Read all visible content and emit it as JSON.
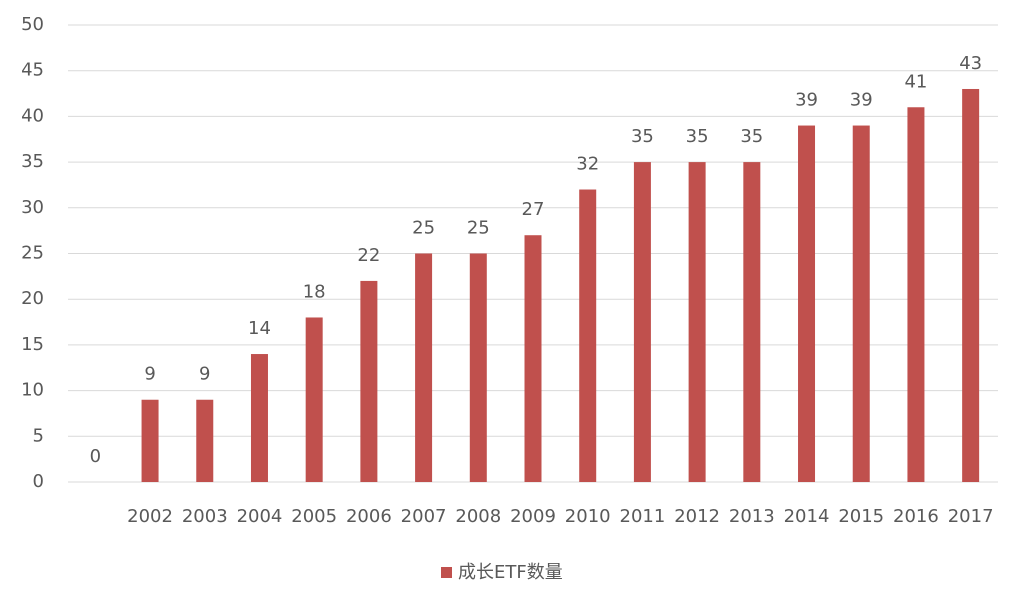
{
  "chart_data": {
    "type": "bar",
    "categories": [
      null,
      "2002",
      "2003",
      "2004",
      "2005",
      "2006",
      "2007",
      "2008",
      "2009",
      "2010",
      "2011",
      "2012",
      "2013",
      "2014",
      "2015",
      "2016",
      "2017"
    ],
    "series": [
      {
        "name": "成长ETF数量",
        "color": "#c0504d",
        "values": [
          0,
          9,
          9,
          14,
          18,
          22,
          25,
          25,
          27,
          32,
          35,
          35,
          35,
          39,
          39,
          41,
          43
        ]
      }
    ],
    "ylim": [
      0,
      50
    ],
    "yticks": [
      0,
      5,
      10,
      15,
      20,
      25,
      30,
      35,
      40,
      45,
      50
    ],
    "grid": true,
    "legend": "bottom"
  }
}
